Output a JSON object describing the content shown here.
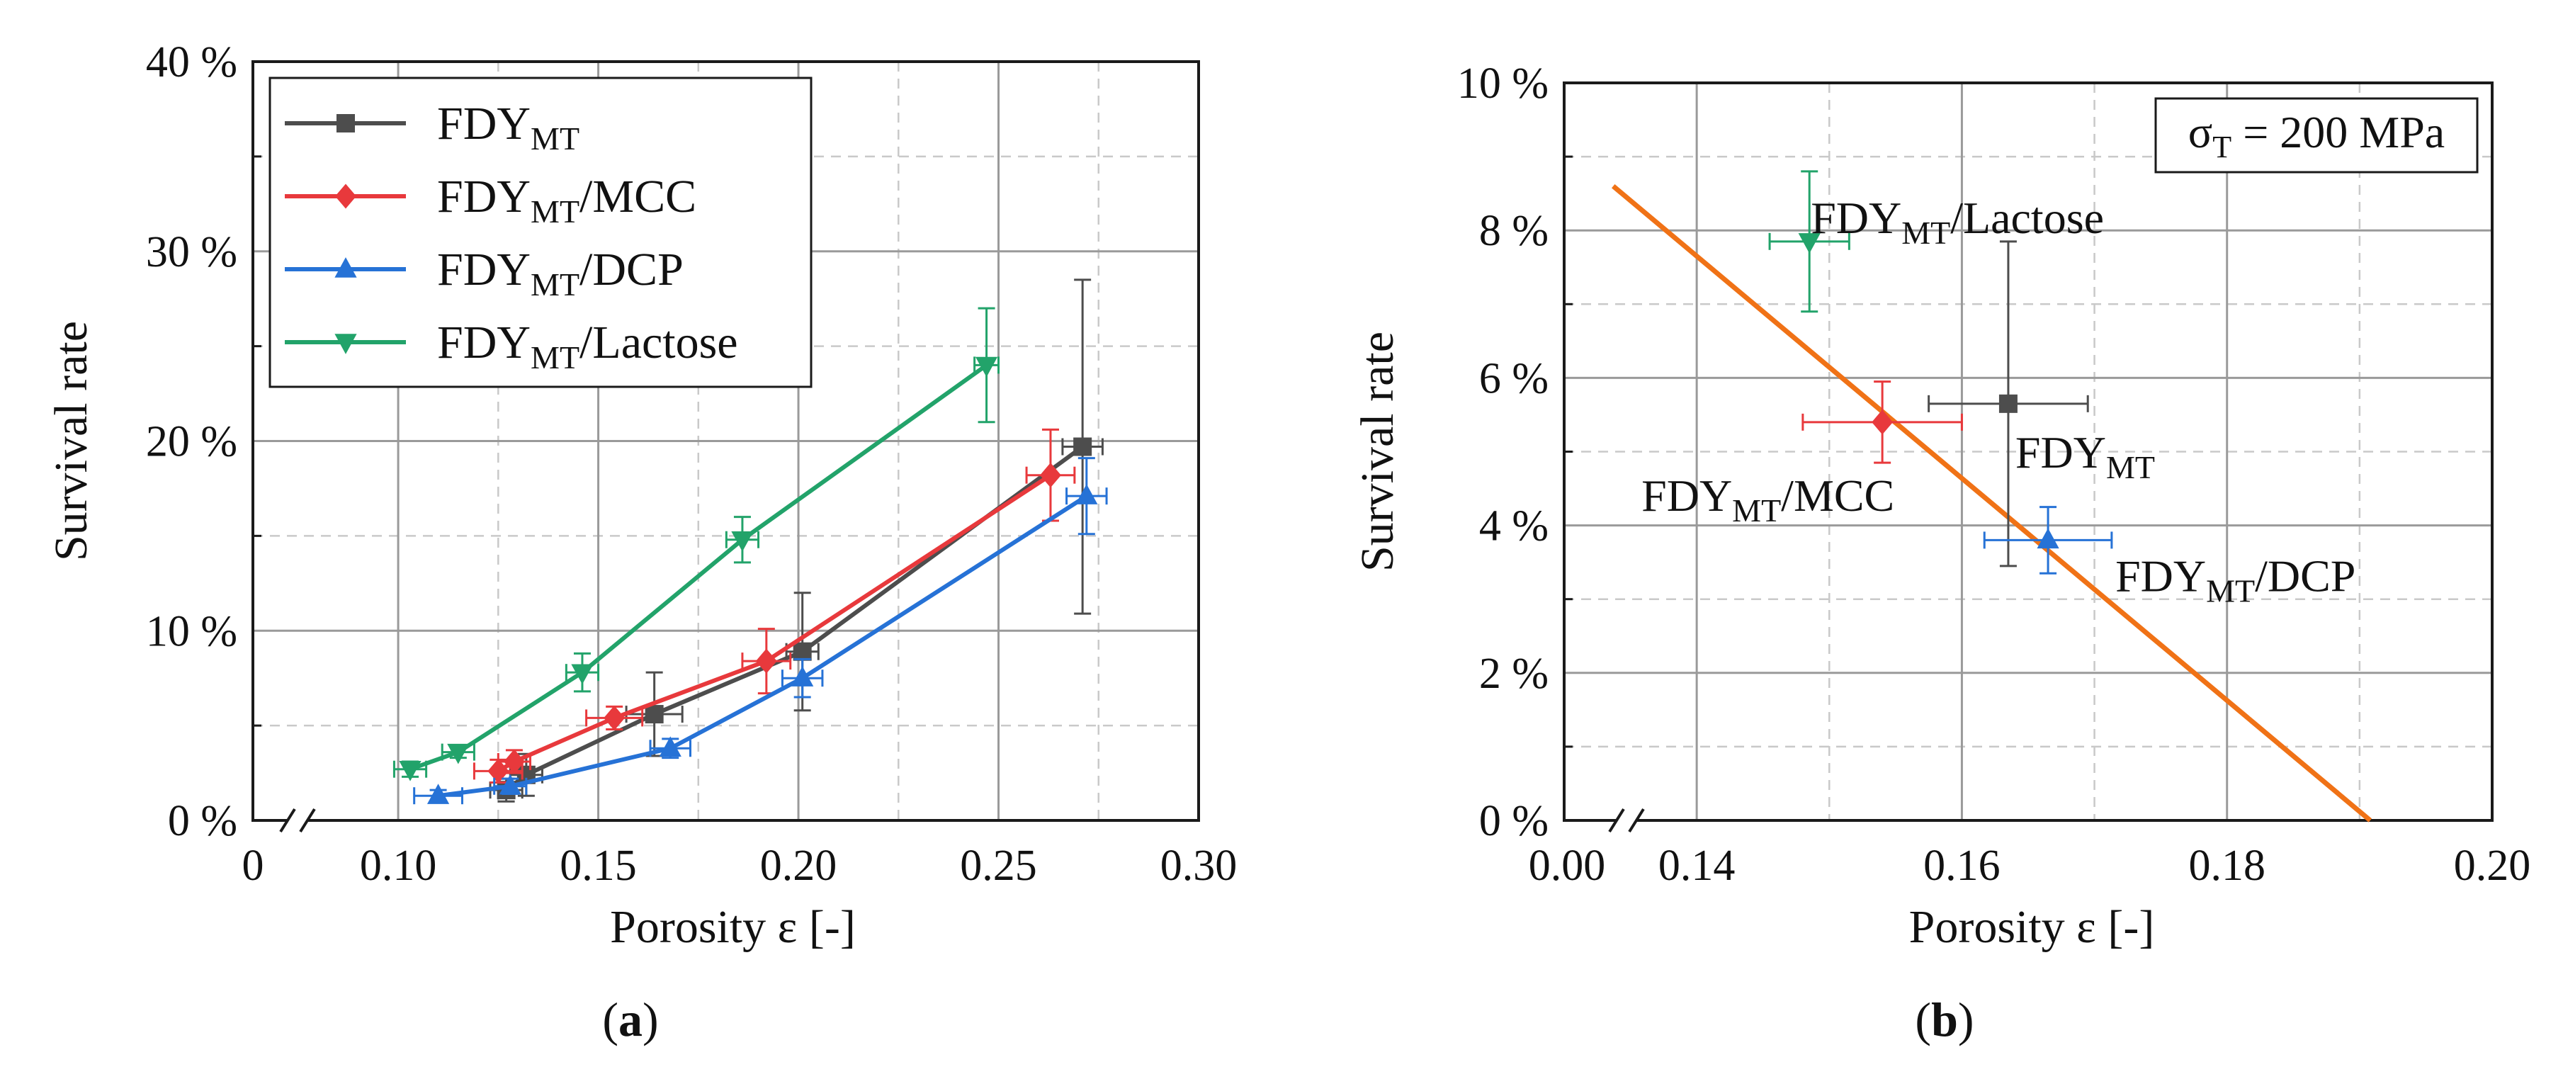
{
  "chart_data": [
    {
      "type": "line",
      "panel": "(a)",
      "caption_letter": "a",
      "xlabel": "Porosity ε [-]",
      "ylabel": "Survival rate",
      "xlim": [
        0,
        0.3
      ],
      "ylim": [
        0,
        40
      ],
      "x_axis_break": true,
      "xticks": [
        0.1,
        0.15,
        0.2,
        0.25,
        0.3
      ],
      "xtick_labels": [
        "0",
        "0.10",
        "0.15",
        "0.20",
        "0.25",
        "0.30"
      ],
      "yticks": [
        0,
        10,
        20,
        30,
        40
      ],
      "ytick_labels": [
        "0 %",
        "10 %",
        "20 %",
        "30 %",
        "40 %"
      ],
      "legend_position": "top-left",
      "series": [
        {
          "name": "FDY",
          "sub": "MT",
          "suffix": "",
          "color": "#4d4d4d",
          "marker": "square",
          "points": [
            {
              "x": 0.127,
              "y": 1.6,
              "xerr": 0.004,
              "yerr": 0.6
            },
            {
              "x": 0.132,
              "y": 2.4,
              "xerr": 0.004,
              "yerr": 1.1
            },
            {
              "x": 0.164,
              "y": 5.6,
              "xerr": 0.007,
              "yerr": 2.2
            },
            {
              "x": 0.201,
              "y": 8.9,
              "xerr": 0.004,
              "yerr": 3.1
            },
            {
              "x": 0.271,
              "y": 19.7,
              "xerr": 0.005,
              "yerr": 8.8
            }
          ]
        },
        {
          "name": "FDY",
          "sub": "MT",
          "suffix": "/MCC",
          "color": "#e8393c",
          "marker": "diamond",
          "points": [
            {
              "x": 0.125,
              "y": 2.6,
              "xerr": 0.006,
              "yerr": 0.6
            },
            {
              "x": 0.129,
              "y": 3.1,
              "xerr": 0.004,
              "yerr": 0.6
            },
            {
              "x": 0.154,
              "y": 5.4,
              "xerr": 0.007,
              "yerr": 0.6
            },
            {
              "x": 0.192,
              "y": 8.4,
              "xerr": 0.006,
              "yerr": 1.7
            },
            {
              "x": 0.263,
              "y": 18.2,
              "xerr": 0.006,
              "yerr": 2.4
            }
          ]
        },
        {
          "name": "FDY",
          "sub": "MT",
          "suffix": "/DCP",
          "color": "#2672d6",
          "marker": "triangle-up",
          "points": [
            {
              "x": 0.11,
              "y": 1.3,
              "xerr": 0.006,
              "yerr": 0.3
            },
            {
              "x": 0.128,
              "y": 1.8,
              "xerr": 0.004,
              "yerr": 0.4
            },
            {
              "x": 0.168,
              "y": 3.8,
              "xerr": 0.005,
              "yerr": 0.5
            },
            {
              "x": 0.201,
              "y": 7.5,
              "xerr": 0.005,
              "yerr": 1.0
            },
            {
              "x": 0.272,
              "y": 17.1,
              "xerr": 0.005,
              "yerr": 2.0
            }
          ]
        },
        {
          "name": "FDY",
          "sub": "MT",
          "suffix": "/Lactose",
          "color": "#22a36a",
          "marker": "triangle-down",
          "points": [
            {
              "x": 0.103,
              "y": 2.7,
              "xerr": 0.004,
              "yerr": 0.4
            },
            {
              "x": 0.115,
              "y": 3.6,
              "xerr": 0.004,
              "yerr": 0.3
            },
            {
              "x": 0.146,
              "y": 7.8,
              "xerr": 0.004,
              "yerr": 1.0
            },
            {
              "x": 0.186,
              "y": 14.8,
              "xerr": 0.004,
              "yerr": 1.2
            },
            {
              "x": 0.247,
              "y": 24.0,
              "xerr": 0.003,
              "yerr": 3.0
            }
          ]
        }
      ]
    },
    {
      "type": "scatter",
      "panel": "(b)",
      "caption_letter": "b",
      "xlabel": "Porosity ε [-]",
      "ylabel": "Survival rate",
      "xlim": [
        0.13,
        0.2
      ],
      "ylim": [
        0,
        10
      ],
      "x_axis_break": true,
      "xticks": [
        0.14,
        0.16,
        0.18,
        0.2
      ],
      "xtick_labels": [
        "0.00",
        "0.14",
        "0.16",
        "0.18",
        "0.20"
      ],
      "yticks": [
        0,
        2,
        4,
        6,
        8,
        10
      ],
      "ytick_labels": [
        "0 %",
        "2 %",
        "4 %",
        "6 %",
        "8 %",
        "10 %"
      ],
      "annotation": {
        "prefix": "σ",
        "sub": "T",
        "suffix": " = 200 MPa",
        "position": "top-right"
      },
      "fit_line": {
        "color": "#f07216",
        "x": [
          0.1337,
          0.1908
        ],
        "y": [
          8.6,
          0.0
        ]
      },
      "points": [
        {
          "name": "FDY",
          "sub": "MT",
          "suffix": "/Lactose",
          "color": "#22a36a",
          "marker": "triangle-down",
          "x": 0.1485,
          "y": 7.85,
          "xerr": 0.003,
          "yerr": 0.95,
          "label_side": "upper-right"
        },
        {
          "name": "FDY",
          "sub": "MT",
          "suffix": "",
          "color": "#4d4d4d",
          "marker": "square",
          "x": 0.1635,
          "y": 5.65,
          "xerr": 0.006,
          "yerr": 2.2,
          "label_side": "lower-right"
        },
        {
          "name": "FDY",
          "sub": "MT",
          "suffix": "/MCC",
          "color": "#e8393c",
          "marker": "diamond",
          "x": 0.154,
          "y": 5.4,
          "xerr": 0.006,
          "yerr": 0.55,
          "label_side": "lower-left"
        },
        {
          "name": "FDY",
          "sub": "MT",
          "suffix": "/DCP",
          "color": "#2672d6",
          "marker": "triangle-up",
          "x": 0.1665,
          "y": 3.8,
          "xerr": 0.0048,
          "yerr": 0.45,
          "label_side": "lower-right"
        }
      ]
    }
  ]
}
